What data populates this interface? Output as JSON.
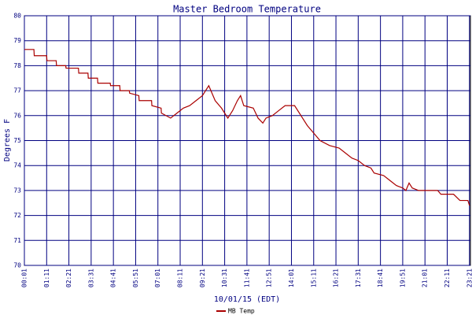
{
  "chart_data": {
    "type": "line",
    "title": "Master Bedroom Temperature",
    "x_label": "10/01/15 (EDT)",
    "y_label": "Degrees F",
    "x": [
      0,
      30,
      31,
      70,
      71,
      100,
      101,
      130,
      131,
      170,
      171,
      200,
      201,
      230,
      231,
      270,
      271,
      300,
      301,
      330,
      331,
      360,
      361,
      400,
      401,
      430,
      431,
      460,
      480,
      500,
      520,
      540,
      560,
      570,
      580,
      590,
      600,
      620,
      640,
      655,
      670,
      680,
      690,
      720,
      735,
      750,
      760,
      780,
      800,
      820,
      850,
      870,
      890,
      910,
      930,
      960,
      990,
      1010,
      1030,
      1050,
      1070,
      1090,
      1100,
      1130,
      1150,
      1170,
      1190,
      1200,
      1210,
      1220,
      1240,
      1300,
      1310,
      1350,
      1370,
      1395,
      1400
    ],
    "series": [
      {
        "name": "MB Temp",
        "color": "#aa0000",
        "values": [
          78.65,
          78.65,
          78.4,
          78.4,
          78.2,
          78.2,
          78.0,
          78.0,
          77.9,
          77.9,
          77.7,
          77.7,
          77.5,
          77.5,
          77.3,
          77.3,
          77.2,
          77.2,
          77.0,
          77.0,
          76.9,
          76.8,
          76.6,
          76.6,
          76.4,
          76.3,
          76.1,
          75.9,
          76.1,
          76.3,
          76.4,
          76.6,
          76.8,
          77.0,
          77.2,
          76.9,
          76.6,
          76.3,
          75.9,
          76.2,
          76.6,
          76.8,
          76.4,
          76.3,
          75.9,
          75.7,
          75.9,
          76.0,
          76.2,
          76.4,
          76.4,
          76.0,
          75.6,
          75.3,
          75.0,
          74.8,
          74.7,
          74.5,
          74.3,
          74.2,
          74.0,
          73.9,
          73.7,
          73.6,
          73.4,
          73.2,
          73.1,
          73.0,
          73.3,
          73.1,
          73.0,
          73.0,
          72.85,
          72.85,
          72.6,
          72.6,
          72.4
        ]
      }
    ],
    "xlim": [
      0,
      1403
    ],
    "ylim": [
      70,
      80
    ],
    "xticks": [
      {
        "value": 0,
        "label": "00:01"
      },
      {
        "value": 70,
        "label": "01:11"
      },
      {
        "value": 140,
        "label": "02:21"
      },
      {
        "value": 210,
        "label": "03:31"
      },
      {
        "value": 280,
        "label": "04:41"
      },
      {
        "value": 350,
        "label": "05:51"
      },
      {
        "value": 420,
        "label": "07:01"
      },
      {
        "value": 490,
        "label": "08:11"
      },
      {
        "value": 560,
        "label": "09:21"
      },
      {
        "value": 630,
        "label": "10:31"
      },
      {
        "value": 700,
        "label": "11:41"
      },
      {
        "value": 770,
        "label": "12:51"
      },
      {
        "value": 840,
        "label": "14:01"
      },
      {
        "value": 910,
        "label": "15:11"
      },
      {
        "value": 980,
        "label": "16:21"
      },
      {
        "value": 1050,
        "label": "17:31"
      },
      {
        "value": 1120,
        "label": "18:41"
      },
      {
        "value": 1190,
        "label": "19:51"
      },
      {
        "value": 1260,
        "label": "21:01"
      },
      {
        "value": 1330,
        "label": "22:11"
      },
      {
        "value": 1400,
        "label": "23:21"
      }
    ],
    "yticks": [
      70,
      71,
      72,
      73,
      74,
      75,
      76,
      77,
      78,
      79,
      80
    ],
    "grid": true
  }
}
